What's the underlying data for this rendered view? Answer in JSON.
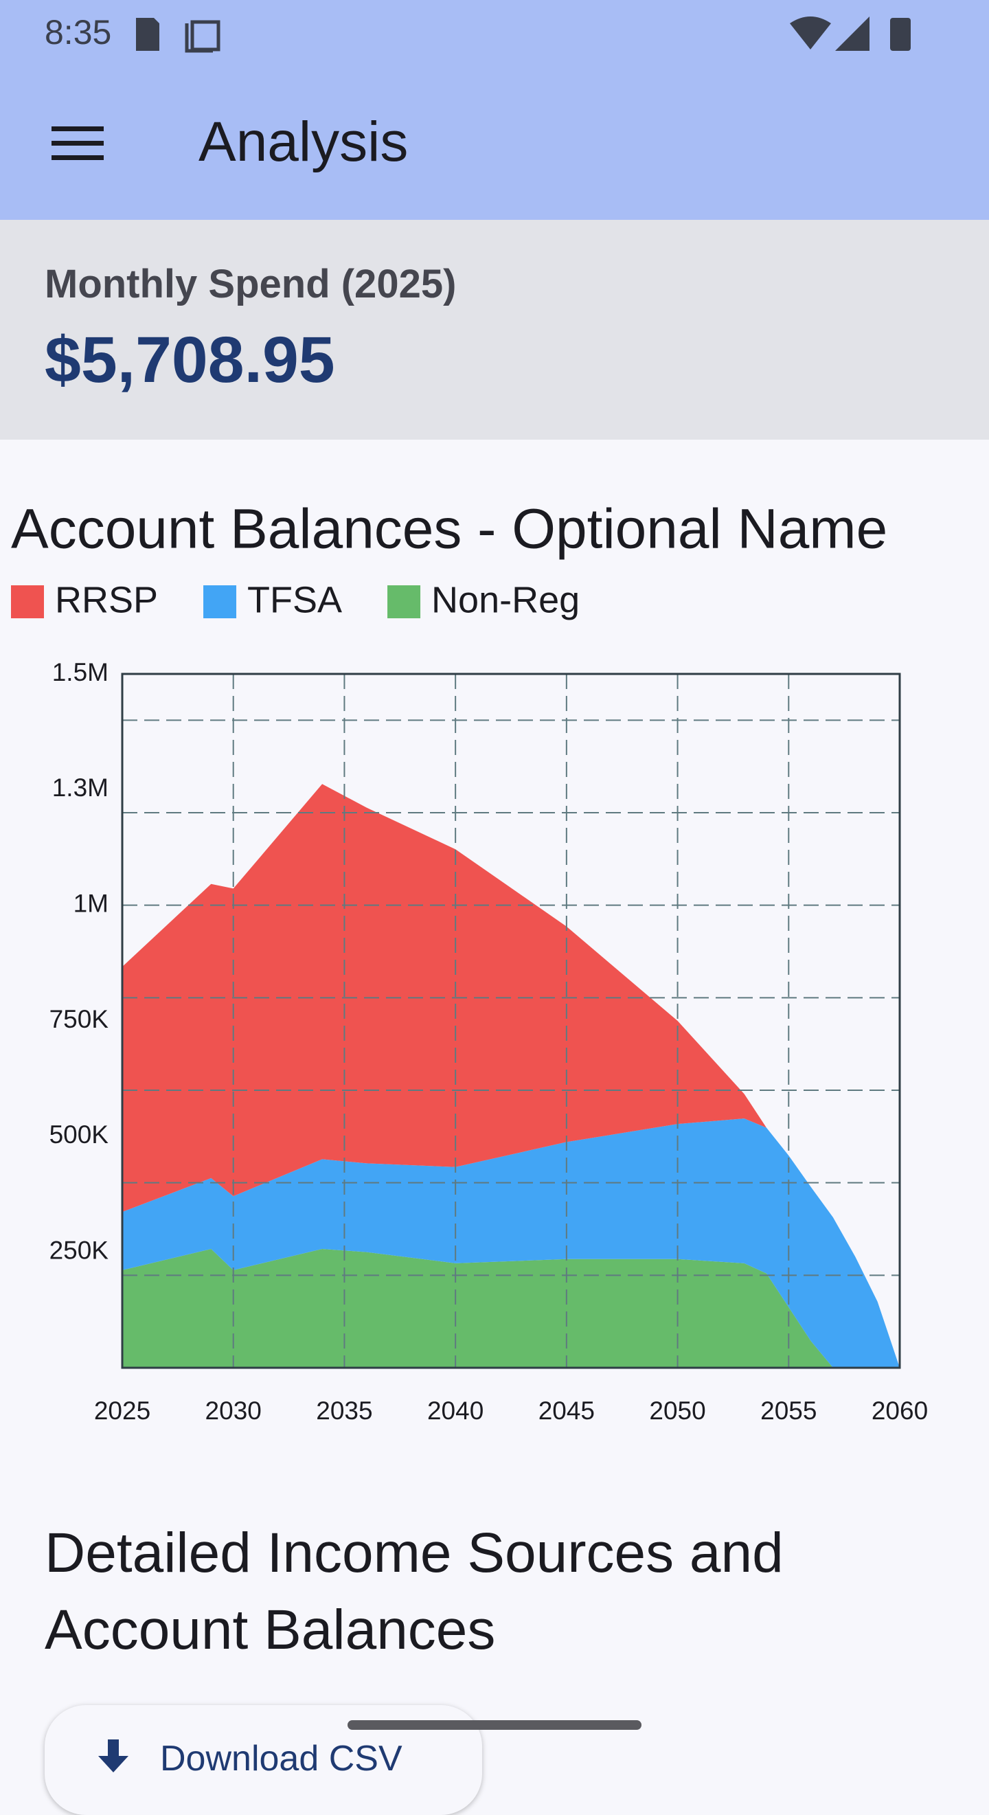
{
  "status": {
    "time": "8:35"
  },
  "app_bar": {
    "title": "Analysis"
  },
  "summary": {
    "label": "Monthly Spend (2025)",
    "value": "$5,708.95"
  },
  "chart_data": {
    "type": "area",
    "stacked": true,
    "title": "Account Balances - Optional Name",
    "x": [
      2025,
      2029,
      2030,
      2034,
      2036,
      2040,
      2045,
      2050,
      2053,
      2054,
      2055,
      2056,
      2057,
      2058,
      2059,
      2060
    ],
    "series": [
      {
        "name": "RRSP",
        "color": "#ef5350",
        "values": [
          530000,
          636000,
          665000,
          811000,
          769000,
          687000,
          466000,
          223000,
          53000,
          0,
          0,
          0,
          0,
          0,
          0,
          0
        ]
      },
      {
        "name": "TFSA",
        "color": "#42a5f5",
        "values": [
          126000,
          153000,
          160000,
          194000,
          192000,
          208000,
          253000,
          292000,
          313000,
          315000,
          328000,
          333000,
          325000,
          240000,
          143000,
          0
        ]
      },
      {
        "name": "Non-Reg",
        "color": "#66bb6a",
        "values": [
          211000,
          257000,
          211000,
          257000,
          250000,
          226000,
          235000,
          235000,
          226000,
          204000,
          131000,
          58000,
          0,
          0,
          0,
          0
        ]
      }
    ],
    "xlim": [
      2025,
      2060
    ],
    "xticks": [
      2025,
      2030,
      2035,
      2040,
      2045,
      2050,
      2055,
      2060
    ],
    "ylim": [
      0,
      1500000
    ],
    "yticks": [
      {
        "value": 250000,
        "label": "250K"
      },
      {
        "value": 500000,
        "label": "500K"
      },
      {
        "value": 750000,
        "label": "750K"
      },
      {
        "value": 1000000,
        "label": "1M"
      },
      {
        "value": 1250000,
        "label": "1.3M"
      },
      {
        "value": 1500000,
        "label": "1.5M"
      }
    ],
    "grid": true,
    "y_grid": [
      200000,
      400000,
      600000,
      800000,
      1000000,
      1200000,
      1400000
    ]
  },
  "section": {
    "heading": "Detailed Income Sources and Account Balances"
  },
  "button": {
    "label": "Download CSV"
  }
}
